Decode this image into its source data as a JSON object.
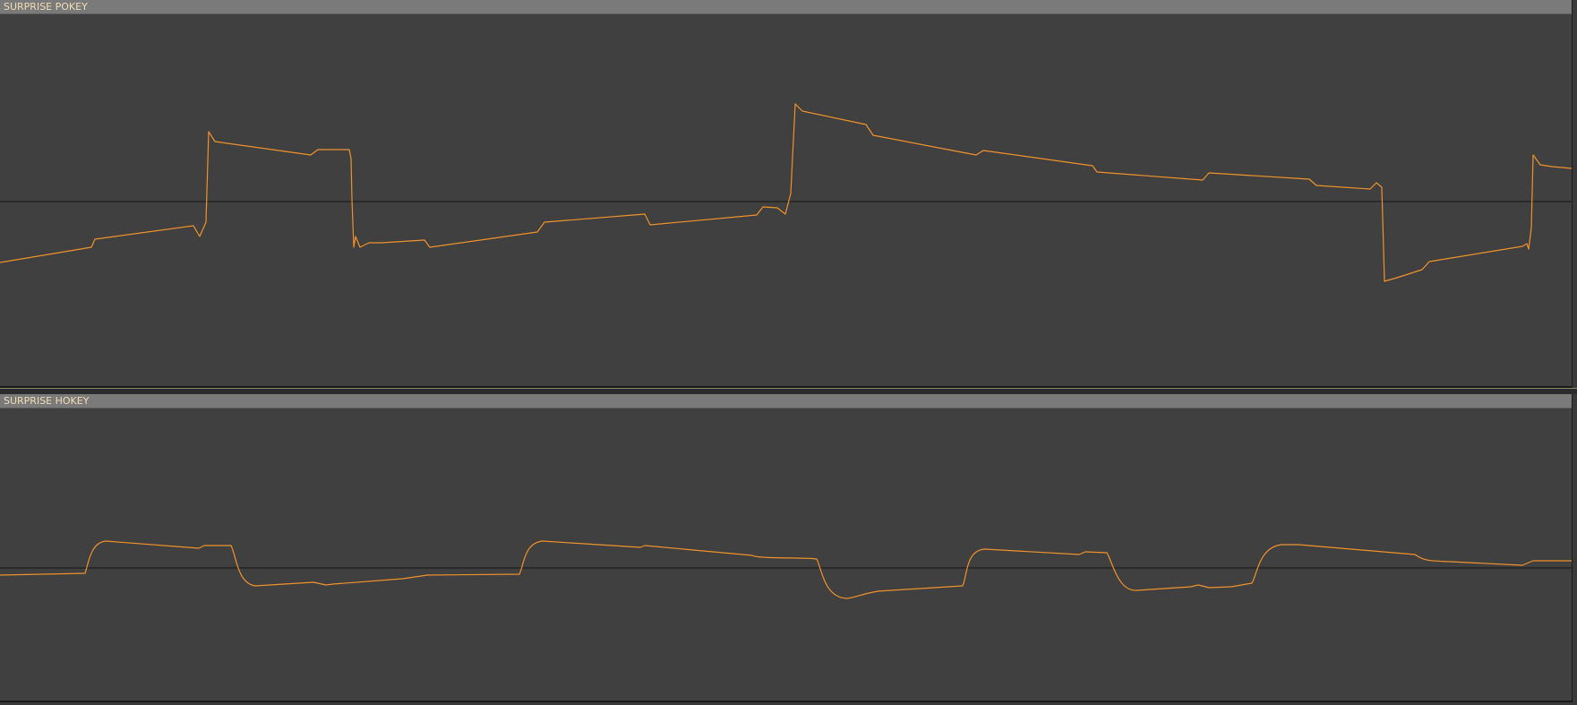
{
  "tracks": [
    {
      "id": "pokey",
      "name": "SURPRISE POKEY"
    },
    {
      "id": "hokey",
      "name": "SURPRISE HOKEY"
    }
  ],
  "colors": {
    "waveform": "#f0922c",
    "background": "#404040",
    "header": "#7a7a7a",
    "header_text": "#f2dcb8"
  }
}
